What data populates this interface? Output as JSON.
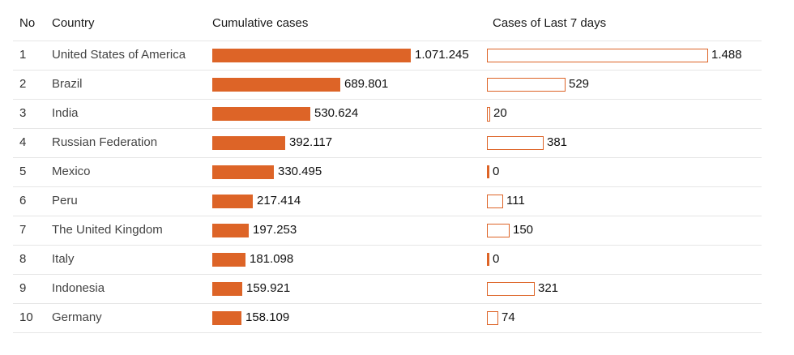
{
  "chart_data": {
    "type": "table",
    "columns": [
      "No",
      "Country",
      "Cumulative cases",
      "Cases of Last 7 days"
    ],
    "rows": [
      {
        "no": "1",
        "country": "United States of America",
        "cumulative": 1071245,
        "cumulative_label": "1.071.245",
        "last7": 1488,
        "last7_label": "1.488"
      },
      {
        "no": "2",
        "country": "Brazil",
        "cumulative": 689801,
        "cumulative_label": "689.801",
        "last7": 529,
        "last7_label": "529"
      },
      {
        "no": "3",
        "country": "India",
        "cumulative": 530624,
        "cumulative_label": "530.624",
        "last7": 20,
        "last7_label": "20"
      },
      {
        "no": "4",
        "country": "Russian Federation",
        "cumulative": 392117,
        "cumulative_label": "392.117",
        "last7": 381,
        "last7_label": "381"
      },
      {
        "no": "5",
        "country": "Mexico",
        "cumulative": 330495,
        "cumulative_label": "330.495",
        "last7": 0,
        "last7_label": "0"
      },
      {
        "no": "6",
        "country": "Peru",
        "cumulative": 217414,
        "cumulative_label": "217.414",
        "last7": 111,
        "last7_label": "111"
      },
      {
        "no": "7",
        "country": "The United Kingdom",
        "cumulative": 197253,
        "cumulative_label": "197.253",
        "last7": 150,
        "last7_label": "150"
      },
      {
        "no": "8",
        "country": "Italy",
        "cumulative": 181098,
        "cumulative_label": "181.098",
        "last7": 0,
        "last7_label": "0"
      },
      {
        "no": "9",
        "country": "Indonesia",
        "cumulative": 159921,
        "cumulative_label": "159.921",
        "last7": 321,
        "last7_label": "321"
      },
      {
        "no": "10",
        "country": "Germany",
        "cumulative": 158109,
        "cumulative_label": "158.109",
        "last7": 74,
        "last7_label": "74"
      }
    ],
    "colors": {
      "bar": "#dd6427"
    }
  }
}
